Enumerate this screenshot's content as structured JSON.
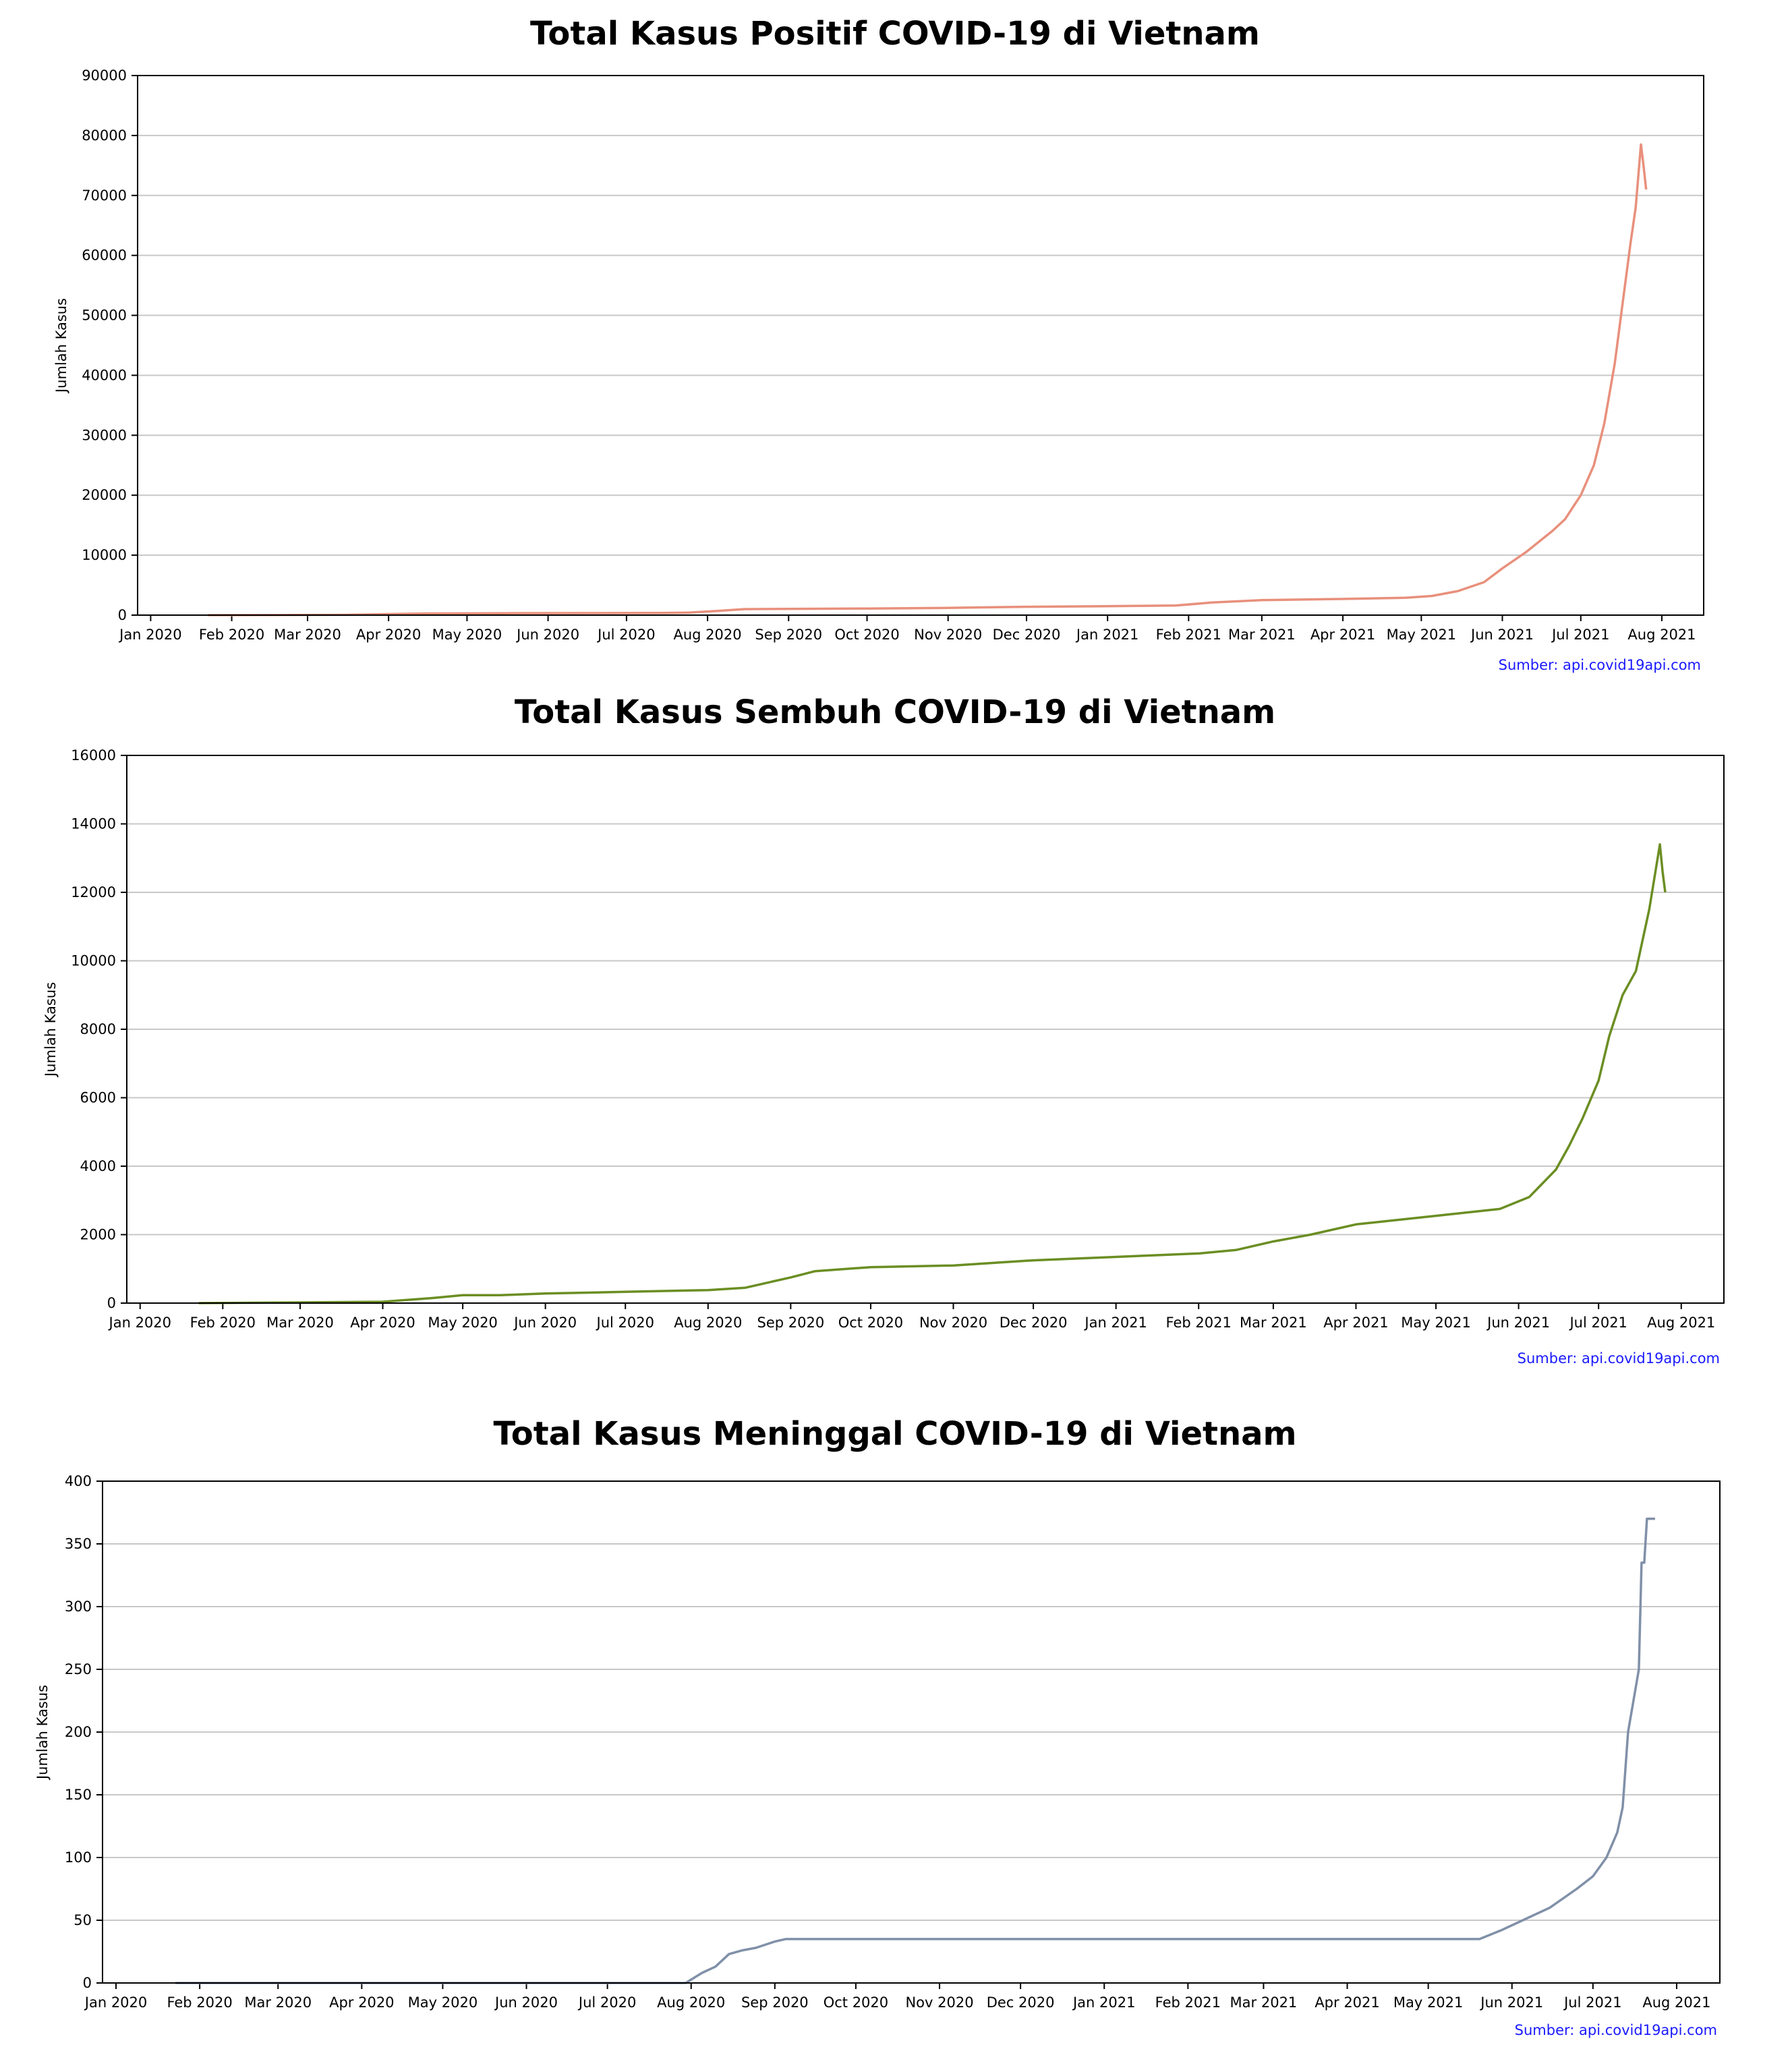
{
  "charts": [
    {
      "id": "positif",
      "type": "line",
      "title": "Total Kasus Positif COVID-19 di Vietnam",
      "ylabel": "Jumlah Kasus",
      "xlabel": "",
      "source": "Sumber: api.covid19api.com",
      "color": "#e8907c",
      "ylim": [
        0,
        90000
      ],
      "yticks": [
        0,
        10000,
        20000,
        30000,
        40000,
        50000,
        60000,
        70000,
        80000,
        90000
      ],
      "xlim": [
        "2019-12-27",
        "2021-08-17"
      ],
      "xticks": [
        {
          "date": "2020-01-01",
          "label": "Jan 2020"
        },
        {
          "date": "2020-02-01",
          "label": "Feb 2020"
        },
        {
          "date": "2020-03-01",
          "label": "Mar 2020"
        },
        {
          "date": "2020-04-01",
          "label": "Apr 2020"
        },
        {
          "date": "2020-05-01",
          "label": "May 2020"
        },
        {
          "date": "2020-06-01",
          "label": "Jun 2020"
        },
        {
          "date": "2020-07-01",
          "label": "Jul 2020"
        },
        {
          "date": "2020-08-01",
          "label": "Aug 2020"
        },
        {
          "date": "2020-09-01",
          "label": "Sep 2020"
        },
        {
          "date": "2020-10-01",
          "label": "Oct 2020"
        },
        {
          "date": "2020-11-01",
          "label": "Nov 2020"
        },
        {
          "date": "2020-12-01",
          "label": "Dec 2020"
        },
        {
          "date": "2021-01-01",
          "label": "Jan 2021"
        },
        {
          "date": "2021-02-01",
          "label": "Feb 2021"
        },
        {
          "date": "2021-03-01",
          "label": "Mar 2021"
        },
        {
          "date": "2021-04-01",
          "label": "Apr 2021"
        },
        {
          "date": "2021-05-01",
          "label": "May 2021"
        },
        {
          "date": "2021-06-01",
          "label": "Jun 2021"
        },
        {
          "date": "2021-07-01",
          "label": "Jul 2021"
        },
        {
          "date": "2021-08-01",
          "label": "Aug 2021"
        }
      ],
      "grid": "horizontal",
      "series": [
        {
          "x": [
            "2020-01-23",
            "2020-02-15",
            "2020-03-15",
            "2020-04-15",
            "2020-05-15",
            "2020-06-15",
            "2020-07-15",
            "2020-07-25",
            "2020-08-05",
            "2020-08-15",
            "2020-09-01",
            "2020-10-01",
            "2020-11-01",
            "2020-12-01",
            "2021-01-01",
            "2021-01-27",
            "2021-02-10",
            "2021-03-01",
            "2021-04-01",
            "2021-04-25",
            "2021-05-05",
            "2021-05-15",
            "2021-05-25",
            "2021-06-01",
            "2021-06-10",
            "2021-06-20",
            "2021-06-25",
            "2021-07-01",
            "2021-07-06",
            "2021-07-10",
            "2021-07-14",
            "2021-07-17",
            "2021-07-20",
            "2021-07-22",
            "2021-07-24",
            "2021-07-25",
            "2021-07-26"
          ],
          "values": [
            2,
            16,
            60,
            270,
            320,
            335,
            370,
            420,
            700,
            1000,
            1050,
            1100,
            1200,
            1400,
            1500,
            1600,
            2100,
            2500,
            2700,
            2900,
            3200,
            4000,
            5500,
            7800,
            10500,
            14000,
            16000,
            20000,
            25000,
            32000,
            42000,
            52000,
            62000,
            68000,
            78500,
            75000,
            71000
          ]
        }
      ]
    },
    {
      "id": "sembuh",
      "type": "line",
      "title": "Total Kasus Sembuh COVID-19 di Vietnam",
      "ylabel": "Jumlah Kasus",
      "xlabel": "",
      "source": "Sumber: api.covid19api.com",
      "color": "#6b8e23",
      "ylim": [
        0,
        16000
      ],
      "yticks": [
        0,
        2000,
        4000,
        6000,
        8000,
        10000,
        12000,
        14000,
        16000
      ],
      "xlim": [
        "2019-12-27",
        "2021-08-17"
      ],
      "xticks": [
        {
          "date": "2020-01-01",
          "label": "Jan 2020"
        },
        {
          "date": "2020-02-01",
          "label": "Feb 2020"
        },
        {
          "date": "2020-03-01",
          "label": "Mar 2020"
        },
        {
          "date": "2020-04-01",
          "label": "Apr 2020"
        },
        {
          "date": "2020-05-01",
          "label": "May 2020"
        },
        {
          "date": "2020-06-01",
          "label": "Jun 2020"
        },
        {
          "date": "2020-07-01",
          "label": "Jul 2020"
        },
        {
          "date": "2020-08-01",
          "label": "Aug 2020"
        },
        {
          "date": "2020-09-01",
          "label": "Sep 2020"
        },
        {
          "date": "2020-10-01",
          "label": "Oct 2020"
        },
        {
          "date": "2020-11-01",
          "label": "Nov 2020"
        },
        {
          "date": "2020-12-01",
          "label": "Dec 2020"
        },
        {
          "date": "2021-01-01",
          "label": "Jan 2021"
        },
        {
          "date": "2021-02-01",
          "label": "Feb 2021"
        },
        {
          "date": "2021-03-01",
          "label": "Mar 2021"
        },
        {
          "date": "2021-04-01",
          "label": "Apr 2021"
        },
        {
          "date": "2021-05-01",
          "label": "May 2021"
        },
        {
          "date": "2021-06-01",
          "label": "Jun 2021"
        },
        {
          "date": "2021-07-01",
          "label": "Jul 2021"
        },
        {
          "date": "2021-08-01",
          "label": "Aug 2021"
        }
      ],
      "grid": "horizontal",
      "series": [
        {
          "x": [
            "2020-01-23",
            "2020-03-01",
            "2020-04-01",
            "2020-04-20",
            "2020-05-01",
            "2020-05-15",
            "2020-06-01",
            "2020-07-01",
            "2020-08-01",
            "2020-08-15",
            "2020-09-01",
            "2020-09-10",
            "2020-10-01",
            "2020-11-01",
            "2020-12-01",
            "2021-01-01",
            "2021-02-01",
            "2021-02-15",
            "2021-03-01",
            "2021-03-15",
            "2021-04-01",
            "2021-05-01",
            "2021-05-25",
            "2021-06-05",
            "2021-06-15",
            "2021-06-20",
            "2021-06-25",
            "2021-07-01",
            "2021-07-05",
            "2021-07-10",
            "2021-07-15",
            "2021-07-20",
            "2021-07-24",
            "2021-07-25",
            "2021-07-26"
          ],
          "values": [
            0,
            20,
            40,
            150,
            230,
            230,
            280,
            330,
            380,
            450,
            750,
            930,
            1050,
            1100,
            1250,
            1350,
            1450,
            1550,
            1800,
            2000,
            2300,
            2550,
            2750,
            3100,
            3900,
            4600,
            5400,
            6500,
            7800,
            9000,
            9700,
            11500,
            13400,
            12600,
            12000
          ]
        }
      ]
    },
    {
      "id": "meninggal",
      "type": "line",
      "title": "Total Kasus Meninggal COVID-19 di Vietnam",
      "ylabel": "Jumlah Kasus",
      "xlabel": "",
      "source": "Sumber: api.covid19api.com",
      "color": "#8090a8",
      "ylim": [
        0,
        400
      ],
      "yticks": [
        0,
        50,
        100,
        150,
        200,
        250,
        300,
        350,
        400
      ],
      "xlim": [
        "2019-12-27",
        "2021-08-17"
      ],
      "xticks": [
        {
          "date": "2020-01-01",
          "label": "Jan 2020"
        },
        {
          "date": "2020-02-01",
          "label": "Feb 2020"
        },
        {
          "date": "2020-03-01",
          "label": "Mar 2020"
        },
        {
          "date": "2020-04-01",
          "label": "Apr 2020"
        },
        {
          "date": "2020-05-01",
          "label": "May 2020"
        },
        {
          "date": "2020-06-01",
          "label": "Jun 2020"
        },
        {
          "date": "2020-07-01",
          "label": "Jul 2020"
        },
        {
          "date": "2020-08-01",
          "label": "Aug 2020"
        },
        {
          "date": "2020-09-01",
          "label": "Sep 2020"
        },
        {
          "date": "2020-10-01",
          "label": "Oct 2020"
        },
        {
          "date": "2020-11-01",
          "label": "Nov 2020"
        },
        {
          "date": "2020-12-01",
          "label": "Dec 2020"
        },
        {
          "date": "2021-01-01",
          "label": "Jan 2021"
        },
        {
          "date": "2021-02-01",
          "label": "Feb 2021"
        },
        {
          "date": "2021-03-01",
          "label": "Mar 2021"
        },
        {
          "date": "2021-04-01",
          "label": "Apr 2021"
        },
        {
          "date": "2021-05-01",
          "label": "May 2021"
        },
        {
          "date": "2021-06-01",
          "label": "Jun 2021"
        },
        {
          "date": "2021-07-01",
          "label": "Jul 2021"
        },
        {
          "date": "2021-08-01",
          "label": "Aug 2021"
        }
      ],
      "grid": "horizontal",
      "series": [
        {
          "x": [
            "2020-01-23",
            "2020-07-30",
            "2020-08-05",
            "2020-08-10",
            "2020-08-15",
            "2020-08-20",
            "2020-08-25",
            "2020-09-01",
            "2020-09-05",
            "2021-05-20",
            "2021-05-28",
            "2021-06-05",
            "2021-06-15",
            "2021-06-25",
            "2021-07-01",
            "2021-07-06",
            "2021-07-10",
            "2021-07-12",
            "2021-07-14",
            "2021-07-16",
            "2021-07-18",
            "2021-07-19",
            "2021-07-20",
            "2021-07-21",
            "2021-07-22",
            "2021-07-23",
            "2021-07-24"
          ],
          "values": [
            0,
            0,
            8,
            13,
            23,
            26,
            28,
            33,
            35,
            35,
            42,
            50,
            60,
            75,
            85,
            100,
            120,
            140,
            200,
            225,
            250,
            335,
            335,
            370,
            370,
            370,
            370
          ]
        }
      ]
    }
  ]
}
